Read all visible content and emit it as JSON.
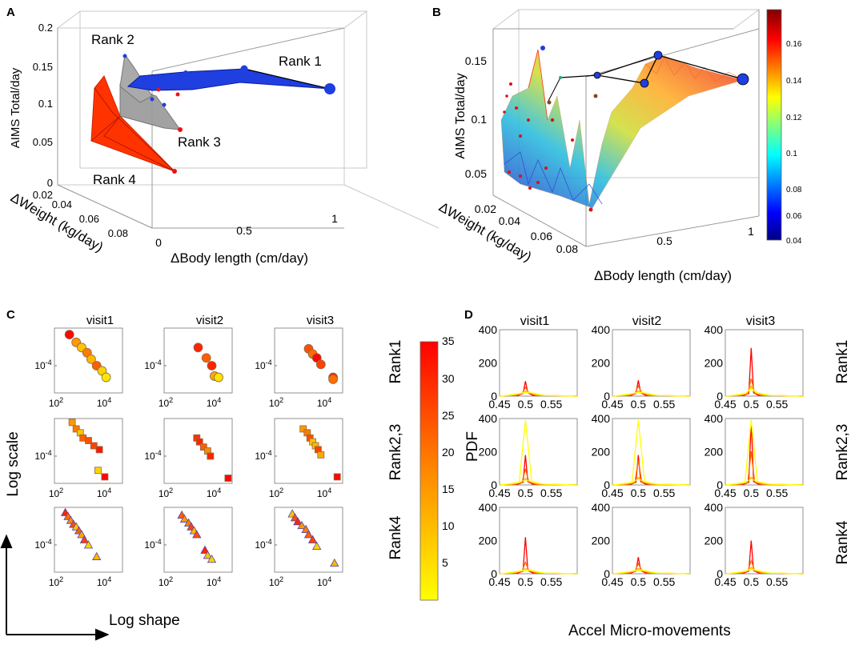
{
  "panel_labels": {
    "a": "A",
    "b": "B",
    "c": "C",
    "d": "D"
  },
  "panelA": {
    "ylabel": "AIMS Total/day",
    "xlabel": "ΔBody length (cm/day)",
    "zlabel": "ΔWeight (kg/day)",
    "yticks": [
      "0.2",
      "0.15",
      "0.1",
      "0.05",
      "0"
    ],
    "xticks": [
      "0",
      "0.5",
      "1"
    ],
    "zticks": [
      "0.02",
      "0.04",
      "0.06",
      "0.08"
    ],
    "rank_labels": [
      "Rank 2",
      "Rank 1",
      "Rank 3",
      "Rank 4"
    ]
  },
  "panelB": {
    "ylabel": "AIMS Total/day",
    "xlabel": "ΔBody length (cm/day)",
    "zlabel": "ΔWeight (kg/day)",
    "yticks": [
      "0.15",
      "0.1",
      "0.05"
    ],
    "xticks": [
      "0.5",
      "1"
    ],
    "zticks": [
      "0.02",
      "0.04",
      "0.06",
      "0.08"
    ],
    "colorbar_ticks": [
      "0.16",
      "0.14",
      "0.12",
      "0.1",
      "0.08",
      "0.06",
      "0.04"
    ]
  },
  "panelC": {
    "visits": [
      "visit1",
      "visit2",
      "visit3"
    ],
    "ranks": [
      "Rank1",
      "Rank2,3",
      "Rank4"
    ],
    "ytick": "10-4",
    "xticks": [
      "10^2",
      "10^4"
    ],
    "ylabel": "Log scale",
    "xlabel": "Log shape",
    "colorbar_ticks": [
      "35",
      "30",
      "25",
      "20",
      "15",
      "10",
      "5"
    ]
  },
  "panelD": {
    "visits": [
      "visit1",
      "visit2",
      "visit3"
    ],
    "ranks": [
      "Rank1",
      "Rank2,3",
      "Rank4"
    ],
    "yticks": [
      "400",
      "200",
      "0"
    ],
    "xticks": [
      "0.45",
      "0.5",
      "0.55"
    ],
    "ylabel": "PDF",
    "xlabel": "Accel Micro-movements"
  },
  "chart_data": [
    {
      "type": "scatter",
      "title": "A",
      "xlabel": "ΔBody length (cm/day)",
      "ylabel": "AIMS Total/day",
      "zlabel": "ΔWeight (kg/day)",
      "ylim": [
        0,
        0.2
      ],
      "xlim": [
        0,
        1
      ],
      "zlim": [
        0.02,
        0.08
      ],
      "series": [
        {
          "name": "Rank 1",
          "color": "#1f3fe0",
          "points": [
            [
              0.12,
              0.13
            ],
            [
              0.3,
              0.135
            ],
            [
              0.55,
              0.14
            ],
            [
              1.0,
              0.118
            ]
          ]
        },
        {
          "name": "Rank 2",
          "color": "#999999",
          "points": [
            [
              0.0,
              0.16
            ],
            [
              0.05,
              0.12
            ],
            [
              0.1,
              0.125
            ]
          ]
        },
        {
          "name": "Rank 3",
          "color": "#999999",
          "points": [
            [
              0.05,
              0.1
            ],
            [
              0.2,
              0.06
            ]
          ]
        },
        {
          "name": "Rank 4",
          "color": "#ff3300",
          "points": [
            [
              0.0,
              0.12
            ],
            [
              0.1,
              0.05
            ],
            [
              0.22,
              0.01
            ]
          ]
        }
      ]
    },
    {
      "type": "heatmap",
      "title": "B",
      "xlabel": "ΔBody length (cm/day)",
      "ylabel": "AIMS Total/day",
      "zlabel": "ΔWeight (kg/day)",
      "colorbar_range": [
        0.04,
        0.17
      ],
      "points_rank1": [
        [
          0.2,
          0.135
        ],
        [
          0.5,
          0.13
        ],
        [
          0.75,
          0.155
        ],
        [
          1.0,
          0.135
        ]
      ]
    },
    {
      "type": "scatter",
      "title": "C",
      "xlabel": "Log shape",
      "ylabel": "Log scale",
      "rows": [
        "Rank1",
        "Rank2,3",
        "Rank4"
      ],
      "cols": [
        "visit1",
        "visit2",
        "visit3"
      ],
      "colorbar_range": [
        0,
        35
      ]
    },
    {
      "type": "line",
      "title": "D",
      "xlabel": "Accel Micro-movements",
      "ylabel": "PDF",
      "xlim": [
        0.45,
        0.6
      ],
      "ylim": [
        0,
        400
      ],
      "peaks": {
        "Rank1": [
          90,
          95,
          290
        ],
        "Rank2,3": [
          390,
          390,
          390
        ],
        "Rank4": [
          220,
          100,
          200
        ]
      }
    }
  ]
}
